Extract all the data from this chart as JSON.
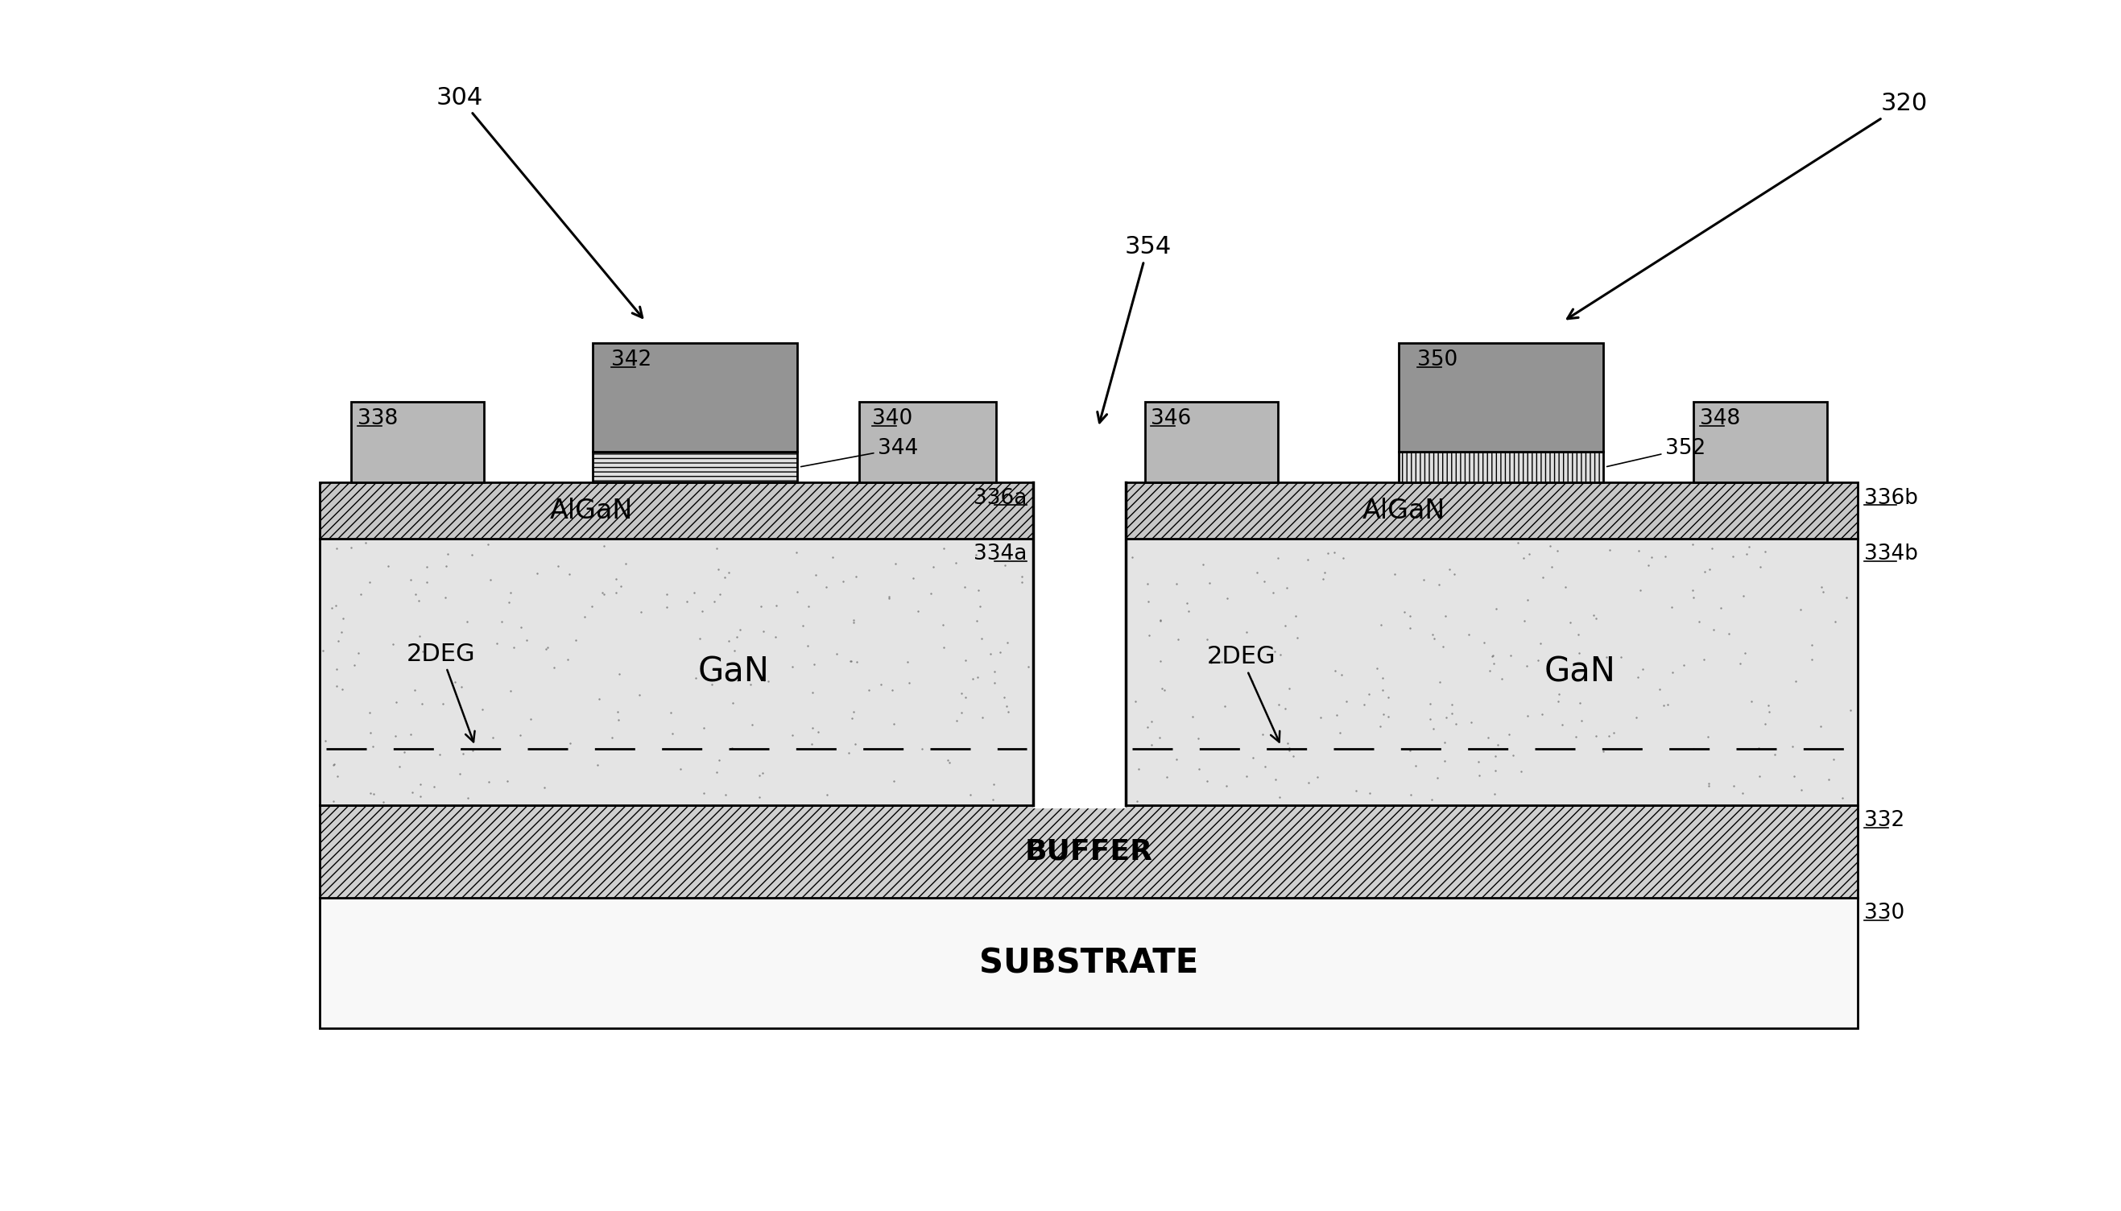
{
  "bg_color": "#ffffff",
  "label_304": "304",
  "label_320": "320",
  "label_354": "354",
  "label_338": "338",
  "label_342": "342",
  "label_340": "340",
  "label_344": "344",
  "label_336a": "336a",
  "label_334a": "334a",
  "label_332": "332",
  "label_330": "330",
  "label_346": "346",
  "label_350": "350",
  "label_348": "348",
  "label_352": "352",
  "label_336b": "336b",
  "label_334b": "334b",
  "text_AlGaN": "AlGaN",
  "text_GaN": "GaN",
  "text_2DEG": "2DEG",
  "text_BUFFER": "BUFFER",
  "text_SUBSTRATE": "SUBSTRATE",
  "substrate_fc": "#f8f8f8",
  "buffer_fc": "#d0d0d0",
  "gan_fc": "#e4e4e4",
  "algan_fc": "#c8c8c8",
  "contact_fc": "#b8b8b8",
  "gate_ins_fc": "#e0e0e0",
  "gate_body_fc": "#949494",
  "gate_body_dark_fc": "#7a7a7a"
}
